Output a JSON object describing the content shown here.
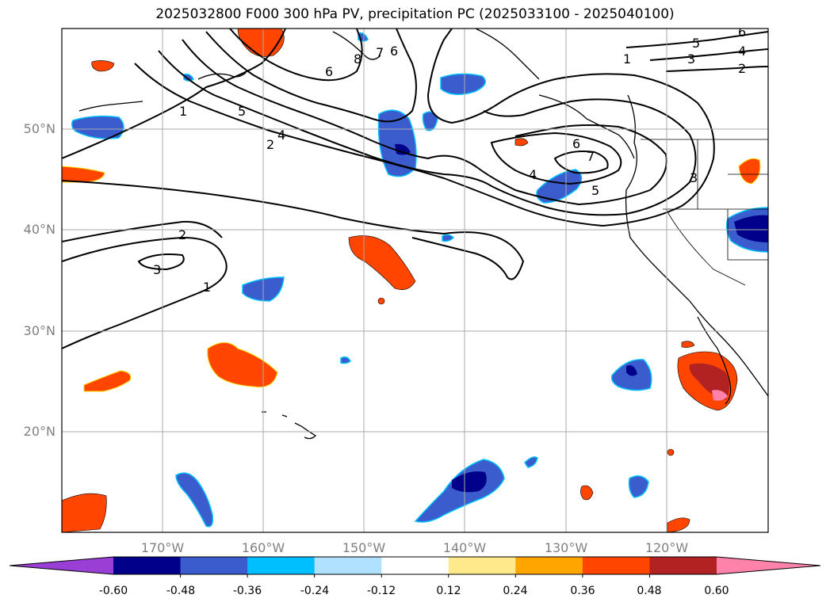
{
  "title": "2025032800 F000 300 hPa PV, precipitation PC (2025033100 - 2025040100)",
  "latitudes": [
    {
      "label": "50°N",
      "value": 50
    },
    {
      "label": "40°N",
      "value": 40
    },
    {
      "label": "30°N",
      "value": 30
    },
    {
      "label": "20°N",
      "value": 20
    }
  ],
  "longitudes": [
    {
      "label": "170°W",
      "value": -170
    },
    {
      "label": "160°W",
      "value": -160
    },
    {
      "label": "150°W",
      "value": -150
    },
    {
      "label": "140°W",
      "value": -140
    },
    {
      "label": "130°W",
      "value": -130
    },
    {
      "label": "120°W",
      "value": -120
    }
  ],
  "colorbar": {
    "colors": [
      "#9a3fd6",
      "#00008b",
      "#3a5ccc",
      "#00bfff",
      "#b0e2ff",
      "#ffffff",
      "#ffe98a",
      "#ffa500",
      "#ff4500",
      "#b22222",
      "#ff82ab"
    ],
    "ticks": [
      "-0.60",
      "-0.48",
      "-0.36",
      "-0.24",
      "-0.12",
      "0.12",
      "0.24",
      "0.36",
      "0.48",
      "0.60"
    ]
  },
  "contour_labels": [
    "1",
    "2",
    "3",
    "4",
    "5",
    "6",
    "7",
    "8"
  ]
}
